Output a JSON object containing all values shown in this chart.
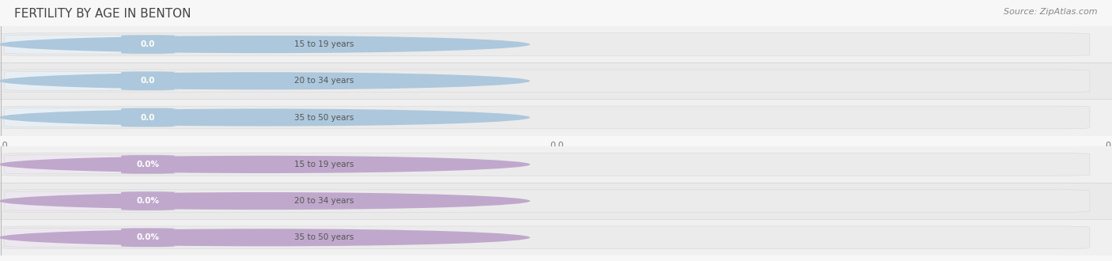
{
  "title": "FERTILITY BY AGE IN BENTON",
  "source": "Source: ZipAtlas.com",
  "top_group": {
    "labels": [
      "15 to 19 years",
      "20 to 34 years",
      "35 to 50 years"
    ],
    "values": [
      0.0,
      0.0,
      0.0
    ],
    "circle_color": "#adc8dc",
    "badge_color": "#adc8dc",
    "label_bg": "#e8eff4",
    "label_text_color": "#555555",
    "bar_bg": "#ebebeb",
    "unit": ""
  },
  "bottom_group": {
    "labels": [
      "15 to 19 years",
      "20 to 34 years",
      "35 to 50 years"
    ],
    "values": [
      0.0,
      0.0,
      0.0
    ],
    "circle_color": "#c0a8cc",
    "badge_color": "#c0a8cc",
    "label_bg": "#ede8f0",
    "label_text_color": "#555555",
    "bar_bg": "#ebebeb",
    "unit": "%"
  },
  "bg_color": "#f7f7f7",
  "fig_width": 14.06,
  "fig_height": 3.3,
  "title_color": "#444444",
  "source_color": "#888888"
}
